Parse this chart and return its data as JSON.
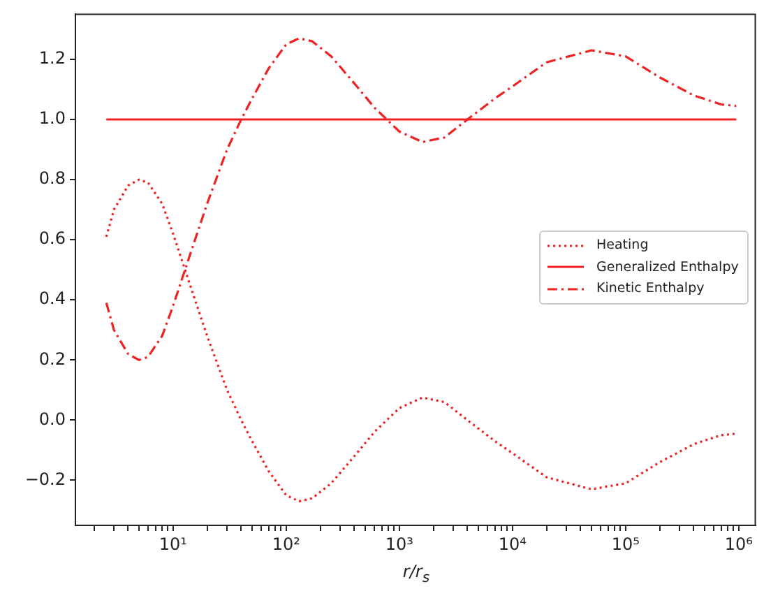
{
  "chart_data": {
    "type": "line",
    "xlabel": "r/r$_{s}$",
    "log": "x",
    "grid": false,
    "legend": "right",
    "marker": "none",
    "xlim": [
      1.37,
      1400000
    ],
    "ylim": [
      -0.35,
      1.35
    ],
    "yticks": [
      {
        "value": -0.2,
        "label": "−0.2"
      },
      {
        "value": 0,
        "label": "0.0"
      },
      {
        "value": 0.2,
        "label": "0.2"
      },
      {
        "value": 0.4,
        "label": "0.4"
      },
      {
        "value": 0.6,
        "label": "0.6"
      },
      {
        "value": 0.8,
        "label": "0.8"
      },
      {
        "value": 1,
        "label": "1.0"
      },
      {
        "value": 1.2,
        "label": "1.2"
      }
    ],
    "xticks": [
      {
        "value": 2,
        "label": null
      },
      {
        "value": 3,
        "label": null
      },
      {
        "value": 4,
        "label": null
      },
      {
        "value": 5,
        "label": null
      },
      {
        "value": 6,
        "label": null
      },
      {
        "value": 7,
        "label": null
      },
      {
        "value": 8,
        "label": null
      },
      {
        "value": 9,
        "label": null
      },
      {
        "value": 10,
        "label": "10¹"
      },
      {
        "value": 20,
        "label": null
      },
      {
        "value": 30,
        "label": null
      },
      {
        "value": 40,
        "label": null
      },
      {
        "value": 50,
        "label": null
      },
      {
        "value": 60,
        "label": null
      },
      {
        "value": 70,
        "label": null
      },
      {
        "value": 80,
        "label": null
      },
      {
        "value": 90,
        "label": null
      },
      {
        "value": 100,
        "label": "10²"
      },
      {
        "value": 200,
        "label": null
      },
      {
        "value": 300,
        "label": null
      },
      {
        "value": 400,
        "label": null
      },
      {
        "value": 500,
        "label": null
      },
      {
        "value": 600,
        "label": null
      },
      {
        "value": 700,
        "label": null
      },
      {
        "value": 800,
        "label": null
      },
      {
        "value": 900,
        "label": null
      },
      {
        "value": 1000,
        "label": "10³"
      },
      {
        "value": 2000,
        "label": null
      },
      {
        "value": 3000,
        "label": null
      },
      {
        "value": 4000,
        "label": null
      },
      {
        "value": 5000,
        "label": null
      },
      {
        "value": 6000,
        "label": null
      },
      {
        "value": 7000,
        "label": null
      },
      {
        "value": 8000,
        "label": null
      },
      {
        "value": 9000,
        "label": null
      },
      {
        "value": 10000,
        "label": "10⁴"
      },
      {
        "value": 20000,
        "label": null
      },
      {
        "value": 30000,
        "label": null
      },
      {
        "value": 40000,
        "label": null
      },
      {
        "value": 50000,
        "label": null
      },
      {
        "value": 60000,
        "label": null
      },
      {
        "value": 70000,
        "label": null
      },
      {
        "value": 80000,
        "label": null
      },
      {
        "value": 90000,
        "label": null
      },
      {
        "value": 100000,
        "label": "10⁵"
      },
      {
        "value": 200000,
        "label": null
      },
      {
        "value": 300000,
        "label": null
      },
      {
        "value": 400000,
        "label": null
      },
      {
        "value": 500000,
        "label": null
      },
      {
        "value": 600000,
        "label": null
      },
      {
        "value": 700000,
        "label": null
      },
      {
        "value": 800000,
        "label": null
      },
      {
        "value": 900000,
        "label": null
      },
      {
        "value": 1000000,
        "label": "10⁶"
      }
    ],
    "series": [
      {
        "name": "Heating",
        "color": "#ee2222",
        "line_style": "dotted",
        "x": [
          2.57,
          3,
          4,
          5,
          6,
          8,
          10,
          12,
          15,
          20,
          30,
          40,
          50,
          70,
          100,
          130,
          170,
          250,
          400,
          600,
          1000,
          1600,
          2500,
          4000,
          7000,
          10000,
          20000,
          50000,
          100000,
          200000,
          400000,
          700000,
          950000
        ],
        "values": [
          0.61,
          0.7,
          0.78,
          0.8,
          0.79,
          0.72,
          0.62,
          0.53,
          0.42,
          0.28,
          0.1,
          0.0,
          -0.07,
          -0.17,
          -0.25,
          -0.27,
          -0.26,
          -0.21,
          -0.12,
          -0.04,
          0.04,
          0.075,
          0.06,
          0.0,
          -0.07,
          -0.11,
          -0.19,
          -0.23,
          -0.21,
          -0.14,
          -0.08,
          -0.05,
          -0.045
        ]
      },
      {
        "name": "Generalized Enthalpy",
        "color": "#ee2222",
        "line_style": "solid",
        "x": [
          2.57,
          950000
        ],
        "values": [
          1,
          1
        ]
      },
      {
        "name": "Kinetic Enthalpy",
        "color": "#ee2222",
        "line_style": "dashed",
        "x": [
          2.57,
          3,
          4,
          5,
          6,
          8,
          10,
          12,
          15,
          20,
          30,
          40,
          50,
          70,
          100,
          130,
          170,
          250,
          400,
          600,
          1000,
          1600,
          2500,
          4000,
          7000,
          10000,
          20000,
          50000,
          100000,
          200000,
          400000,
          700000,
          950000
        ],
        "values": [
          0.39,
          0.3,
          0.22,
          0.2,
          0.21,
          0.28,
          0.38,
          0.47,
          0.58,
          0.72,
          0.9,
          1.0,
          1.07,
          1.17,
          1.25,
          1.27,
          1.26,
          1.21,
          1.12,
          1.04,
          0.96,
          0.925,
          0.94,
          1.0,
          1.07,
          1.11,
          1.19,
          1.23,
          1.21,
          1.14,
          1.08,
          1.05,
          1.045
        ]
      }
    ]
  }
}
